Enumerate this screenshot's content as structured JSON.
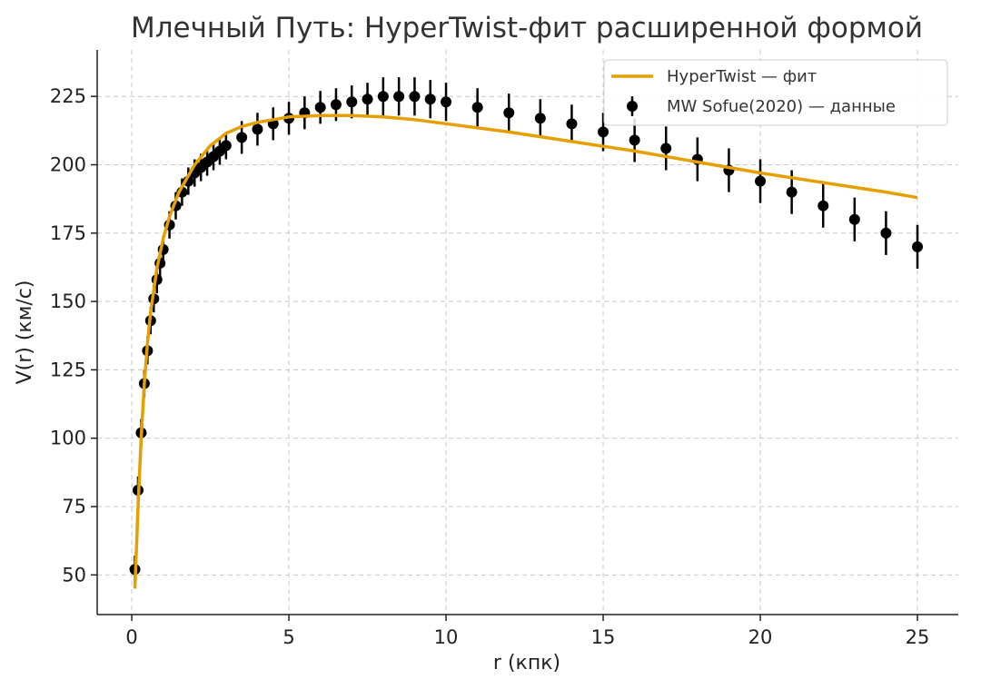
{
  "chart_data": {
    "type": "scatter",
    "title": "Млечный Путь: HyperTwist-фит расширенной формой",
    "xlabel": "r (кпк)",
    "ylabel": "V(r) (км/с)",
    "xlim": [
      -1.1,
      26.3
    ],
    "ylim": [
      35.5,
      242
    ],
    "xticks": [
      0,
      5,
      10,
      15,
      20,
      25
    ],
    "yticks": [
      50,
      75,
      100,
      125,
      150,
      175,
      200,
      225
    ],
    "grid": true,
    "legend_position": "top-right",
    "series": [
      {
        "name": "HyperTwist — фит",
        "kind": "line",
        "color": "#E69F00",
        "x": [
          0.1,
          0.2,
          0.3,
          0.4,
          0.5,
          0.6,
          0.8,
          1.0,
          1.2,
          1.5,
          2.0,
          2.5,
          3.0,
          3.5,
          4.0,
          5.0,
          6.0,
          7.0,
          8.0,
          9.0,
          10.0,
          12.0,
          14.0,
          16.0,
          18.0,
          20.0,
          22.0,
          24.0,
          25.0
        ],
        "y": [
          45,
          75,
          100,
          120,
          135,
          146,
          162,
          173,
          181,
          190,
          200,
          207,
          211.5,
          214,
          215.5,
          217.5,
          218,
          218,
          217.5,
          216.5,
          215,
          212,
          208.5,
          205,
          201,
          197,
          193.5,
          190,
          188
        ]
      },
      {
        "name": "MW Sofue(2020) — данные",
        "kind": "errorbar",
        "color": "#000000",
        "x": [
          0.1,
          0.2,
          0.3,
          0.4,
          0.5,
          0.6,
          0.7,
          0.8,
          0.9,
          1.0,
          1.2,
          1.4,
          1.6,
          1.8,
          2.0,
          2.2,
          2.4,
          2.6,
          2.8,
          3.0,
          3.5,
          4.0,
          4.5,
          5.0,
          5.5,
          6.0,
          6.5,
          7.0,
          7.5,
          8.0,
          8.5,
          9.0,
          9.5,
          10.0,
          11.0,
          12.0,
          13.0,
          14.0,
          15.0,
          16.0,
          17.0,
          18.0,
          19.0,
          20.0,
          21.0,
          22.0,
          23.0,
          24.0,
          25.0
        ],
        "y": [
          52,
          81,
          102,
          120,
          132,
          143,
          151,
          158,
          164,
          169,
          178,
          185,
          190,
          194,
          197,
          199,
          201,
          203,
          205,
          207,
          210,
          213,
          215,
          217,
          219,
          221,
          222,
          223,
          224,
          225,
          225,
          225,
          224,
          223,
          221,
          219,
          217,
          215,
          212,
          209,
          206,
          202,
          198,
          194,
          190,
          185,
          180,
          175,
          170
        ],
        "yerr": [
          5,
          5,
          5,
          5,
          5,
          5,
          5,
          5,
          5,
          5,
          5,
          5,
          5,
          5,
          5,
          5,
          5,
          5,
          5,
          5,
          6,
          6,
          6,
          6,
          6,
          6,
          6,
          6,
          6,
          7,
          7,
          7,
          7,
          7,
          7,
          7,
          7,
          7,
          7,
          8,
          8,
          8,
          8,
          8,
          8,
          8,
          8,
          8,
          8
        ]
      }
    ]
  }
}
